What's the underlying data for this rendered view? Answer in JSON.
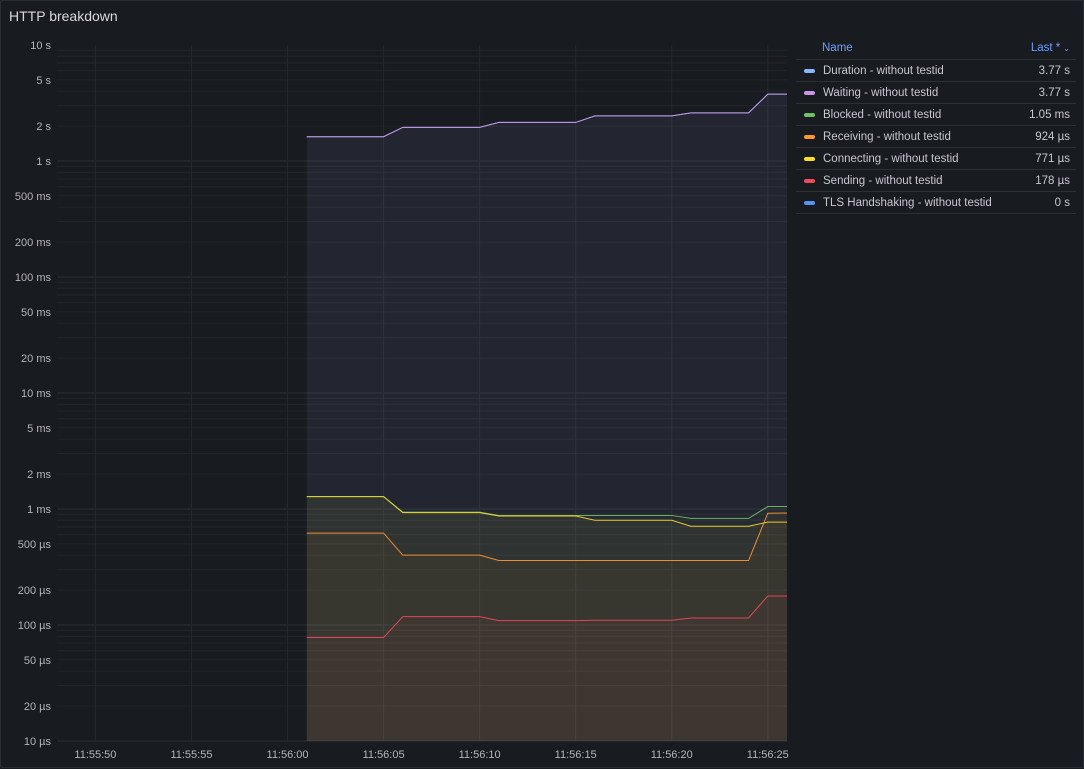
{
  "panel": {
    "title": "HTTP breakdown"
  },
  "legend": {
    "header_name": "Name",
    "header_value": "Last *",
    "items": [
      {
        "name": "Duration - without testid",
        "value": "3.77 s",
        "color": "#8ab8ff"
      },
      {
        "name": "Waiting - without testid",
        "value": "3.77 s",
        "color": "#ca95e5"
      },
      {
        "name": "Blocked - without testid",
        "value": "1.05 ms",
        "color": "#73bf69"
      },
      {
        "name": "Receiving - without testid",
        "value": "924 µs",
        "color": "#ff9830"
      },
      {
        "name": "Connecting - without testid",
        "value": "771 µs",
        "color": "#fade2a"
      },
      {
        "name": "Sending - without testid",
        "value": "178 µs",
        "color": "#f2495c"
      },
      {
        "name": "TLS Handshaking - without testid",
        "value": "0 s",
        "color": "#5794f2"
      }
    ]
  },
  "chart_data": {
    "type": "area",
    "title": "HTTP breakdown",
    "y_scale": "log",
    "y_unit": "s",
    "ylim": [
      1e-05,
      10
    ],
    "y_ticks": [
      {
        "value": 10,
        "label": "10 s"
      },
      {
        "value": 5,
        "label": "5 s"
      },
      {
        "value": 2,
        "label": "2 s"
      },
      {
        "value": 1,
        "label": "1 s"
      },
      {
        "value": 0.5,
        "label": "500 ms"
      },
      {
        "value": 0.2,
        "label": "200 ms"
      },
      {
        "value": 0.1,
        "label": "100 ms"
      },
      {
        "value": 0.05,
        "label": "50 ms"
      },
      {
        "value": 0.02,
        "label": "20 ms"
      },
      {
        "value": 0.01,
        "label": "10 ms"
      },
      {
        "value": 0.005,
        "label": "5 ms"
      },
      {
        "value": 0.002,
        "label": "2 ms"
      },
      {
        "value": 0.001,
        "label": "1 ms"
      },
      {
        "value": 0.0005,
        "label": "500 µs"
      },
      {
        "value": 0.0002,
        "label": "200 µs"
      },
      {
        "value": 0.0001,
        "label": "100 µs"
      },
      {
        "value": 5e-05,
        "label": "50 µs"
      },
      {
        "value": 2e-05,
        "label": "20 µs"
      },
      {
        "value": 1e-05,
        "label": "10 µs"
      }
    ],
    "x_ticks": [
      "11:55:50",
      "11:55:55",
      "11:56:00",
      "11:56:05",
      "11:56:10",
      "11:56:15",
      "11:56:20",
      "11:56:25"
    ],
    "x_range": [
      "11:55:48",
      "11:56:26"
    ],
    "grid": true,
    "legend_position": "right",
    "x": [
      "11:56:01",
      "11:56:05",
      "11:56:06",
      "11:56:10",
      "11:56:11",
      "11:56:15",
      "11:56:16",
      "11:56:20",
      "11:56:21",
      "11:56:24",
      "11:56:25",
      "11:56:26"
    ],
    "series": [
      {
        "name": "Duration - without testid",
        "color": "#8ab8ff",
        "values": [
          1.62,
          1.62,
          1.95,
          1.95,
          2.15,
          2.15,
          2.45,
          2.45,
          2.6,
          2.6,
          3.77,
          3.77
        ]
      },
      {
        "name": "Waiting - without testid",
        "color": "#ca95e5",
        "values": [
          1.62,
          1.62,
          1.95,
          1.95,
          2.15,
          2.15,
          2.45,
          2.45,
          2.6,
          2.6,
          3.77,
          3.77
        ]
      },
      {
        "name": "Blocked - without testid",
        "color": "#73bf69",
        "values": [
          0.00128,
          0.00128,
          0.00094,
          0.00094,
          0.00088,
          0.00088,
          0.00088,
          0.00088,
          0.00083,
          0.00083,
          0.00105,
          0.00105
        ]
      },
      {
        "name": "Receiving - without testid",
        "color": "#ff9830",
        "values": [
          0.00062,
          0.00062,
          0.0004,
          0.0004,
          0.00036,
          0.00036,
          0.00036,
          0.00036,
          0.00036,
          0.00036,
          0.00092,
          0.000924
        ]
      },
      {
        "name": "Connecting - without testid",
        "color": "#fade2a",
        "values": [
          0.00128,
          0.00128,
          0.00093,
          0.00093,
          0.00087,
          0.00087,
          0.0008,
          0.0008,
          0.00071,
          0.00071,
          0.000771,
          0.000771
        ]
      },
      {
        "name": "Sending - without testid",
        "color": "#f2495c",
        "values": [
          7.8e-05,
          7.8e-05,
          0.000118,
          0.000118,
          0.000109,
          0.000109,
          0.00011,
          0.00011,
          0.000115,
          0.000115,
          0.000178,
          0.000178
        ]
      },
      {
        "name": "TLS Handshaking - without testid",
        "color": "#5794f2",
        "values": [
          0,
          0,
          0,
          0,
          0,
          0,
          0,
          0,
          0,
          0,
          0,
          0
        ]
      }
    ]
  }
}
